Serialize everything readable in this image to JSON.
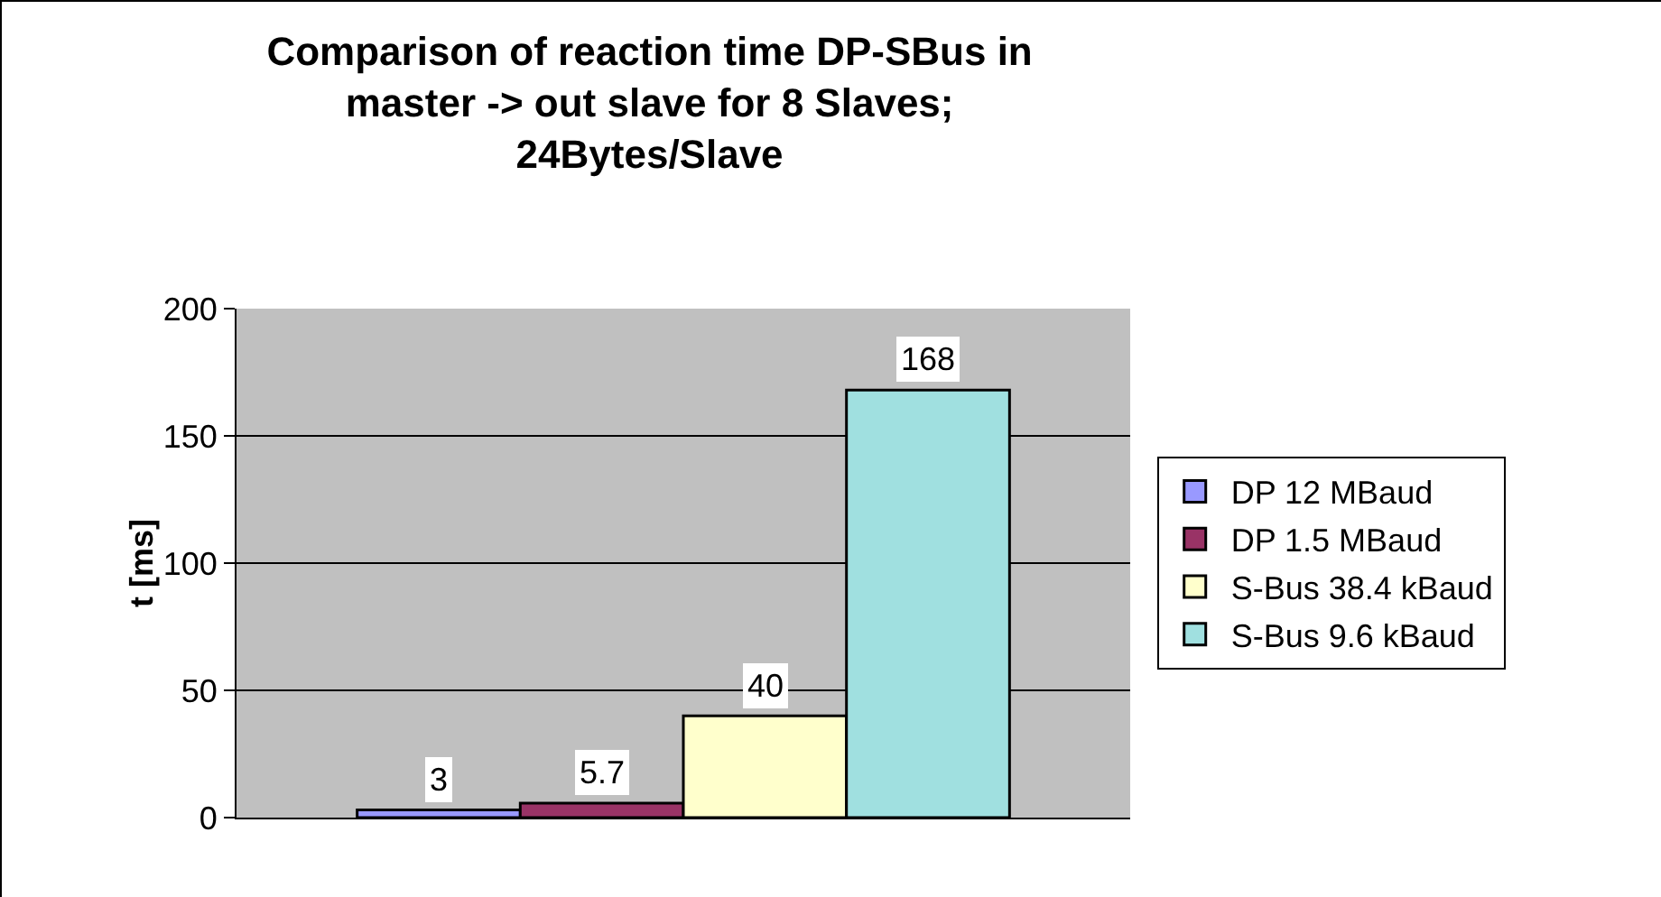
{
  "chart_data": {
    "type": "bar",
    "title": "Comparison of reaction time DP-SBus in master -> out slave for 8 Slaves; 24Bytes/Slave",
    "ylabel": "t [ms]",
    "categories": [
      null
    ],
    "series": [
      {
        "name": "DP 12 MBaud",
        "color": "#9999ff",
        "values": [
          3
        ]
      },
      {
        "name": "DP 1.5 MBaud",
        "color": "#993366",
        "values": [
          5.7
        ]
      },
      {
        "name": "S-Bus 38.4 kBaud",
        "color": "#ffffcc",
        "values": [
          40
        ]
      },
      {
        "name": "S-Bus 9.6 kBaud",
        "color": "#a0e0e0",
        "values": [
          168
        ]
      }
    ],
    "ylim": [
      0,
      200
    ],
    "yticks": [
      0,
      50,
      100,
      150,
      200
    ],
    "grid": "y",
    "legend": "right",
    "data_labels": true
  }
}
